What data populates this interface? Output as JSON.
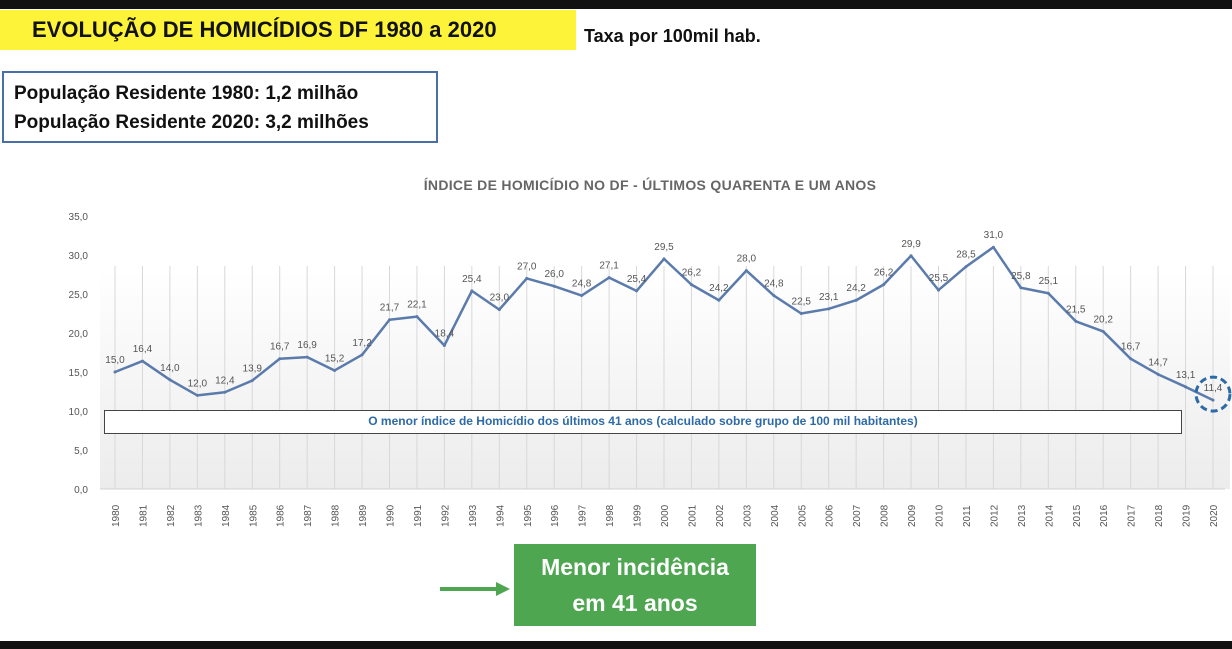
{
  "header": {
    "title": "EVOLUÇÃO DE HOMICÍDIOS DF 1980 a 2020",
    "subtitle": "Taxa por 100mil hab."
  },
  "population": {
    "line1": "População Residente 1980: 1,2 milhão",
    "line2": "População Residente 2020: 3,2 milhões"
  },
  "callout": {
    "line1": "Menor incidência",
    "line2": "em 41 anos"
  },
  "colors": {
    "line": "#5a7bab",
    "highlight": "#2d6aa6",
    "title_bg": "#fdf43a",
    "callout_bg": "#4fa650"
  },
  "chart_data": {
    "type": "line",
    "title": "ÍNDICE DE HOMICÍDIO NO DF - ÚLTIMOS QUARENTA E UM ANOS",
    "xlabel": "",
    "ylabel": "",
    "ylim": [
      0,
      35
    ],
    "yticks": [
      "0,0",
      "5,0",
      "10,0",
      "15,0",
      "20,0",
      "25,0",
      "30,0",
      "35,0"
    ],
    "grid": "vertical",
    "categories": [
      "1980",
      "1981",
      "1982",
      "1983",
      "1984",
      "1985",
      "1986",
      "1987",
      "1988",
      "1989",
      "1990",
      "1991",
      "1992",
      "1993",
      "1994",
      "1995",
      "1996",
      "1997",
      "1998",
      "1999",
      "2000",
      "2001",
      "2002",
      "2003",
      "2004",
      "2005",
      "2006",
      "2007",
      "2008",
      "2009",
      "2010",
      "2011",
      "2012",
      "2013",
      "2014",
      "2015",
      "2016",
      "2017",
      "2018",
      "2019",
      "2020"
    ],
    "values": [
      15.0,
      16.4,
      14.0,
      12.0,
      12.4,
      13.9,
      16.7,
      16.9,
      15.2,
      17.2,
      21.7,
      22.1,
      18.4,
      25.4,
      23.0,
      27.0,
      26.0,
      24.8,
      27.1,
      25.4,
      29.5,
      26.2,
      24.2,
      28.0,
      24.8,
      22.5,
      23.1,
      24.2,
      26.2,
      29.9,
      25.5,
      28.5,
      31.0,
      25.8,
      25.1,
      21.5,
      20.2,
      16.7,
      14.7,
      13.1,
      11.4
    ],
    "labels": [
      "15,0",
      "16,4",
      "14,0",
      "12,0",
      "12,4",
      "13,9",
      "16,7",
      "16,9",
      "15,2",
      "17,2",
      "21,7",
      "22,1",
      "18,4",
      "25,4",
      "23,0",
      "27,0",
      "26,0",
      "24,8",
      "27,1",
      "25,4",
      "29,5",
      "26,2",
      "24,2",
      "28,0",
      "24,8",
      "22,5",
      "23,1",
      "24,2",
      "26,2",
      "29,9",
      "25,5",
      "28,5",
      "31,0",
      "25,8",
      "25,1",
      "21,5",
      "20,2",
      "16,7",
      "14,7",
      "13,1",
      "11,4"
    ],
    "annotation": "O menor índice de Homicídio dos últimos 41 anos (calculado sobre grupo de 100 mil habitantes)",
    "highlight": "2020"
  }
}
